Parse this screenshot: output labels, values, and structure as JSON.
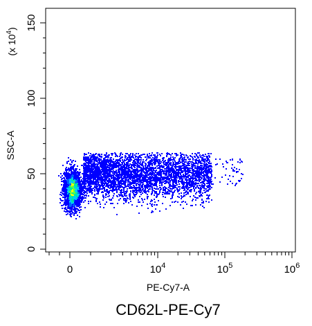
{
  "chart_data": {
    "type": "scatter",
    "style": "density-dot-plot",
    "caption": "CD62L-PE-Cy7",
    "xlabel": "PE-Cy7-A",
    "ylabel": "SSC-A",
    "y_multiplier_label": "(x 10",
    "y_multiplier_exp": "4",
    "y_multiplier_close": ")",
    "x_scale": "biexponential",
    "ylim": [
      0,
      165
    ],
    "y_ticks": [
      {
        "value": 0,
        "label": "0"
      },
      {
        "value": 50,
        "label": "50"
      },
      {
        "value": 100,
        "label": "100"
      },
      {
        "value": 150,
        "label": "150"
      }
    ],
    "x_ticks": [
      {
        "value": 0,
        "label": "0",
        "exp": ""
      },
      {
        "value": 10000,
        "label": "10",
        "exp": "4"
      },
      {
        "value": 100000,
        "label": "10",
        "exp": "5"
      },
      {
        "value": 1000000,
        "label": "10",
        "exp": "6"
      }
    ],
    "density_colors": [
      "#0000ff",
      "#0060ff",
      "#00c8ff",
      "#00e8a0",
      "#60ff40",
      "#ffff00"
    ],
    "populations": [
      {
        "x_center": 0,
        "x_spread": 120,
        "y_center": 40,
        "y_spread": 8,
        "share": 0.55
      },
      {
        "x_range": [
          0,
          60000
        ],
        "y_range": [
          25,
          62
        ],
        "share": 0.45
      }
    ],
    "grid": false,
    "legend": "none"
  }
}
